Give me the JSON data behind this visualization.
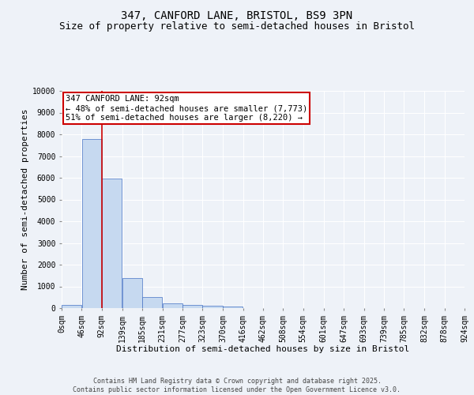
{
  "title": "347, CANFORD LANE, BRISTOL, BS9 3PN",
  "subtitle": "Size of property relative to semi-detached houses in Bristol",
  "xlabel": "Distribution of semi-detached houses by size in Bristol",
  "ylabel": "Number of semi-detached properties",
  "bin_labels": [
    "0sqm",
    "46sqm",
    "92sqm",
    "139sqm",
    "185sqm",
    "231sqm",
    "277sqm",
    "323sqm",
    "370sqm",
    "416sqm",
    "462sqm",
    "508sqm",
    "554sqm",
    "601sqm",
    "647sqm",
    "693sqm",
    "739sqm",
    "785sqm",
    "832sqm",
    "878sqm",
    "924sqm"
  ],
  "bin_edges": [
    0,
    46,
    92,
    139,
    185,
    231,
    277,
    323,
    370,
    416,
    462,
    508,
    554,
    601,
    647,
    693,
    739,
    785,
    832,
    878,
    924
  ],
  "bar_heights": [
    150,
    7800,
    5950,
    1400,
    500,
    230,
    130,
    100,
    55,
    10,
    5,
    3,
    2,
    1,
    1,
    0,
    0,
    0,
    0,
    0
  ],
  "bar_color": "#c6d9f0",
  "bar_edge_color": "#4472c4",
  "vline_x": 92,
  "vline_color": "#cc0000",
  "annotation_title": "347 CANFORD LANE: 92sqm",
  "annotation_line1": "← 48% of semi-detached houses are smaller (7,773)",
  "annotation_line2": "51% of semi-detached houses are larger (8,220) →",
  "annotation_box_color": "#ffffff",
  "annotation_border_color": "#cc0000",
  "ylim": [
    0,
    10000
  ],
  "yticks": [
    0,
    1000,
    2000,
    3000,
    4000,
    5000,
    6000,
    7000,
    8000,
    9000,
    10000
  ],
  "bg_color": "#eef2f8",
  "footer_line1": "Contains HM Land Registry data © Crown copyright and database right 2025.",
  "footer_line2": "Contains public sector information licensed under the Open Government Licence v3.0.",
  "title_fontsize": 10,
  "subtitle_fontsize": 9,
  "axis_label_fontsize": 8,
  "tick_fontsize": 7,
  "annotation_fontsize": 7.5,
  "footer_fontsize": 6
}
